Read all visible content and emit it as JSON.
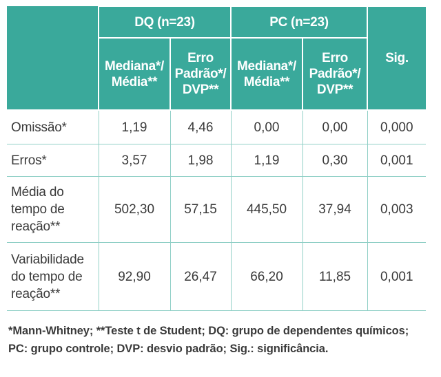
{
  "table": {
    "group_headers": {
      "dq": "DQ (n=23)",
      "pc": "PC (n=23)"
    },
    "sub_headers": {
      "dq_median": "Mediana*/ Média**",
      "dq_error": "Erro Padrão*/ DVP**",
      "pc_median": "Mediana*/ Média**",
      "pc_error": "Erro Padrão*/ DVP**",
      "sig": "Sig."
    },
    "rows": [
      {
        "label": "Omissão*",
        "dq_median": "1,19",
        "dq_error": "4,46",
        "pc_median": "0,00",
        "pc_error": "0,00",
        "sig": "0,000"
      },
      {
        "label": "Erros*",
        "dq_median": "3,57",
        "dq_error": "1,98",
        "pc_median": "1,19",
        "pc_error": "0,30",
        "sig": "0,001"
      },
      {
        "label": "Média do tempo de reação**",
        "dq_median": "502,30",
        "dq_error": "57,15",
        "pc_median": "445,50",
        "pc_error": "37,94",
        "sig": "0,003"
      },
      {
        "label": "Variabilidade do tempo de reação**",
        "dq_median": "92,90",
        "dq_error": "26,47",
        "pc_median": "66,20",
        "pc_error": "11,85",
        "sig": "0,001"
      }
    ]
  },
  "footnote": "*Mann-Whitney; **Teste t de Student; DQ: grupo de dependentes químicos; PC: grupo controle; DVP: desvio padrão; Sig.: significância.",
  "colors": {
    "header_bg": "#3aa99b",
    "header_text": "#ffffff",
    "row_divider": "#8fcfc6",
    "body_text": "#3a3a3a"
  }
}
